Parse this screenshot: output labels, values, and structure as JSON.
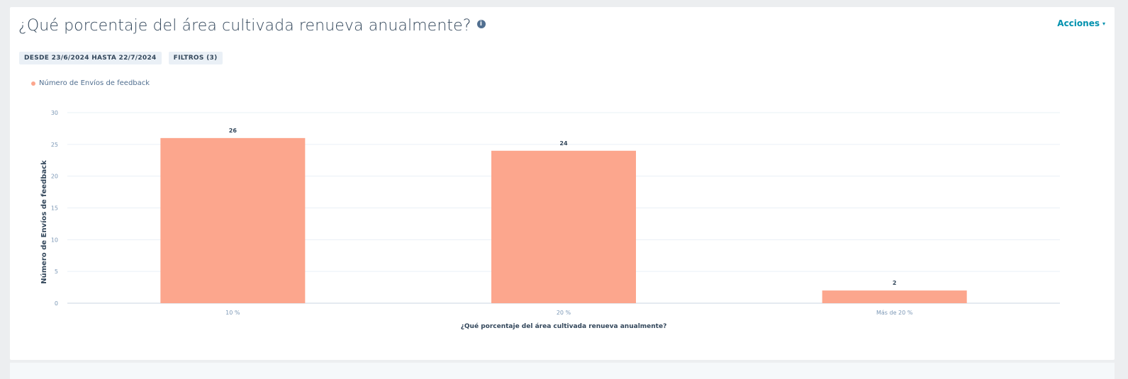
{
  "header": {
    "title": "¿Qué porcentaje del área cultivada renueva anualmente?",
    "info_icon": "i",
    "actions_label": "Acciones",
    "actions_caret": "▾"
  },
  "tags": {
    "date_range": "DESDE 23/6/2024 HASTA 22/7/2024",
    "filters": "FILTROS (3)"
  },
  "colors": {
    "bar": "#fca68d",
    "accent": "#0091ae"
  },
  "chart_data": {
    "type": "bar",
    "categories": [
      "10 %",
      "20 %",
      "Más de 20 %"
    ],
    "series": [
      {
        "name": "Número de Envíos de feedback",
        "values": [
          26,
          24,
          2
        ]
      }
    ],
    "data_labels": [
      "26",
      "24",
      "2"
    ],
    "ylabel": "Número de Envíos de feedback",
    "xlabel": "¿Qué porcentaje del área cultivada renueva anualmente?",
    "ylim": [
      0,
      30
    ],
    "yticks": [
      0,
      5,
      10,
      15,
      20,
      25,
      30
    ],
    "grid": true,
    "legend": "top-left"
  }
}
